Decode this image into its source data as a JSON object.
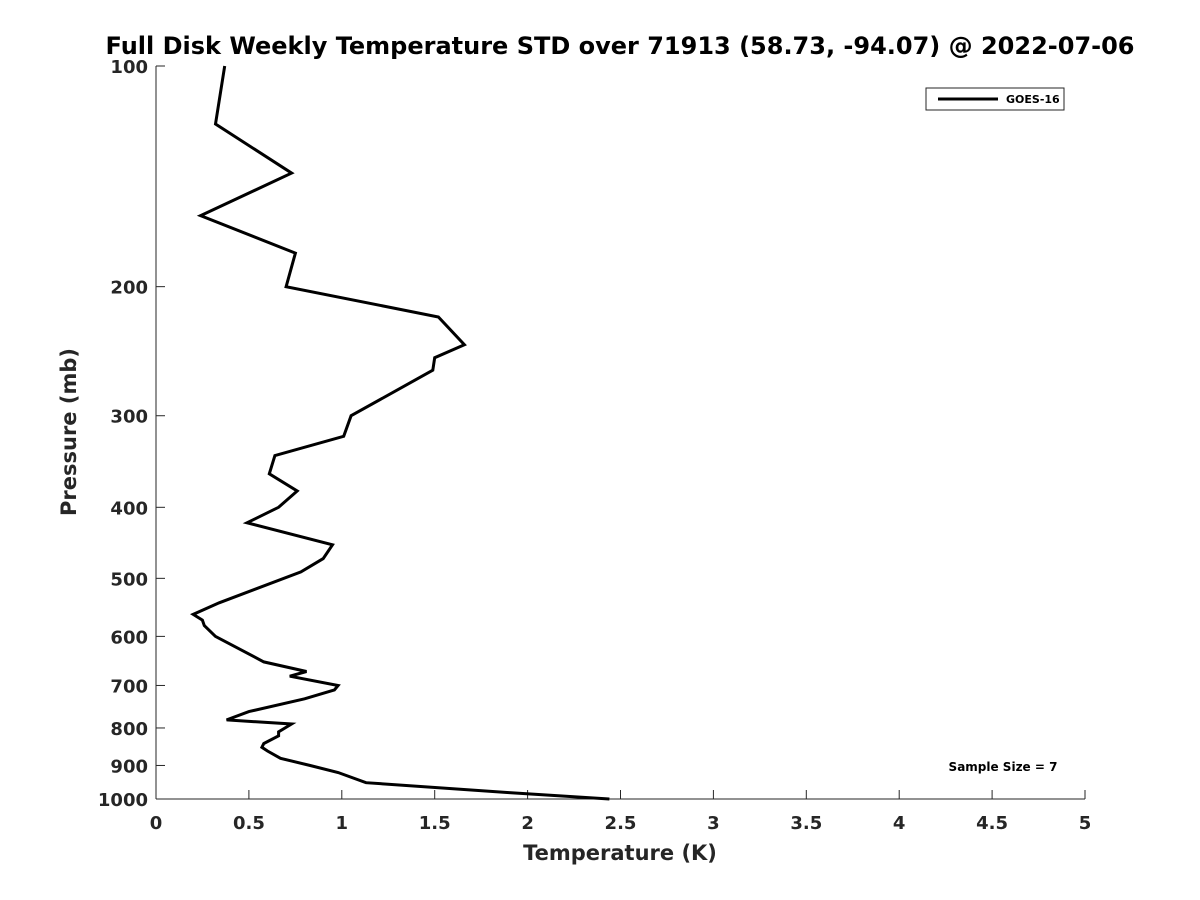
{
  "chart_data": {
    "type": "line",
    "title": "Full Disk Weekly Temperature STD over 71913 (58.73, -94.07) @ 2022-07-06",
    "xlabel": "Temperature (K)",
    "ylabel": "Pressure (mb)",
    "xlim": [
      0,
      5
    ],
    "ylim": [
      100,
      1000
    ],
    "y_scale": "log",
    "y_reversed": true,
    "x_ticks": [
      0,
      0.5,
      1,
      1.5,
      2,
      2.5,
      3,
      3.5,
      4,
      4.5,
      5
    ],
    "x_tick_labels": [
      "0",
      "0.5",
      "1",
      "1.5",
      "2",
      "2.5",
      "3",
      "3.5",
      "4",
      "4.5",
      "5"
    ],
    "y_ticks": [
      100,
      200,
      300,
      400,
      500,
      600,
      700,
      800,
      900,
      1000
    ],
    "y_tick_labels": [
      "100",
      "200",
      "300",
      "400",
      "500",
      "600",
      "700",
      "800",
      "900",
      "1000"
    ],
    "grid": false,
    "legend": {
      "placement": "top-right",
      "entries": [
        "GOES-16"
      ]
    },
    "annotation": "Sample Size = 7",
    "line_color": "#000000",
    "series": [
      {
        "name": "GOES-16",
        "points": [
          [
            0.37,
            100
          ],
          [
            0.32,
            120
          ],
          [
            0.73,
            140
          ],
          [
            0.24,
            160
          ],
          [
            0.75,
            180
          ],
          [
            0.7,
            200
          ],
          [
            1.52,
            220
          ],
          [
            1.66,
            240
          ],
          [
            1.5,
            250
          ],
          [
            1.49,
            260
          ],
          [
            1.05,
            300
          ],
          [
            1.01,
            320
          ],
          [
            0.64,
            340
          ],
          [
            0.61,
            360
          ],
          [
            0.76,
            380
          ],
          [
            0.66,
            400
          ],
          [
            0.49,
            420
          ],
          [
            0.95,
            450
          ],
          [
            0.9,
            470
          ],
          [
            0.78,
            490
          ],
          [
            0.34,
            540
          ],
          [
            0.2,
            560
          ],
          [
            0.25,
            570
          ],
          [
            0.26,
            580
          ],
          [
            0.32,
            600
          ],
          [
            0.53,
            640
          ],
          [
            0.58,
            650
          ],
          [
            0.81,
            670
          ],
          [
            0.72,
            680
          ],
          [
            0.98,
            700
          ],
          [
            0.96,
            710
          ],
          [
            0.8,
            730
          ],
          [
            0.5,
            760
          ],
          [
            0.38,
            780
          ],
          [
            0.73,
            790
          ],
          [
            0.66,
            810
          ],
          [
            0.66,
            820
          ],
          [
            0.58,
            840
          ],
          [
            0.57,
            850
          ],
          [
            0.6,
            860
          ],
          [
            0.67,
            880
          ],
          [
            0.83,
            900
          ],
          [
            0.98,
            920
          ],
          [
            1.13,
            950
          ],
          [
            1.9,
            980
          ],
          [
            2.44,
            1000
          ]
        ]
      }
    ]
  }
}
